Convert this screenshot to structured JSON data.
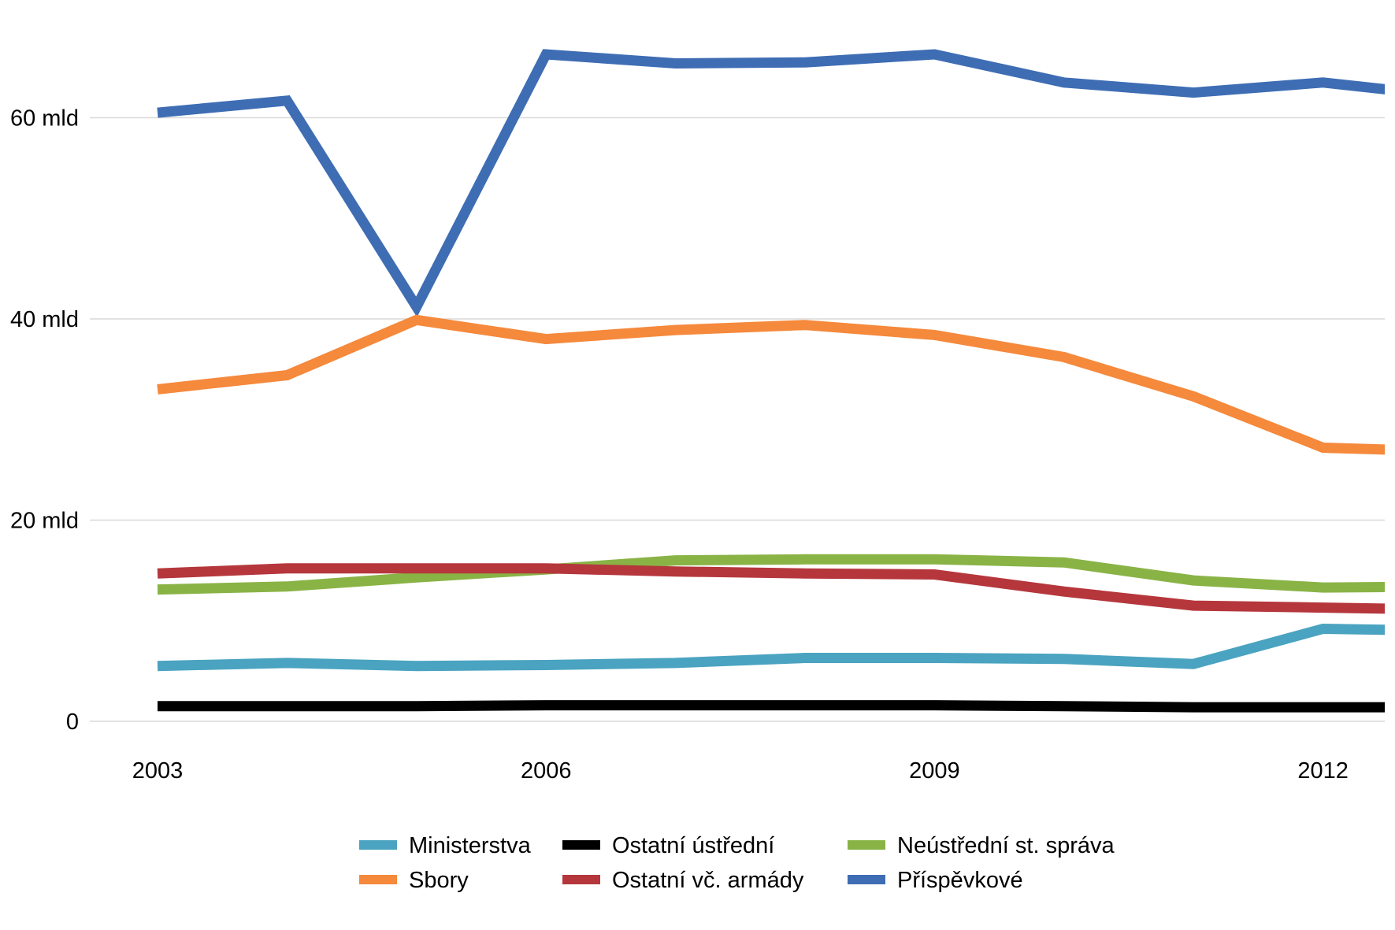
{
  "chart_data": {
    "type": "line",
    "x": [
      2003,
      2004,
      2005,
      2006,
      2007,
      2008,
      2009,
      2010,
      2011,
      2012,
      2013
    ],
    "x_tick_labels": [
      "2003",
      "2006",
      "2009",
      "2012"
    ],
    "x_tick_values": [
      2003,
      2006,
      2009,
      2012
    ],
    "y_tick_labels": [
      "0",
      "20 mld",
      "40 mld",
      "60 mld"
    ],
    "y_tick_values": [
      0,
      20,
      40,
      60
    ],
    "ylim": [
      0,
      70
    ],
    "grid": true,
    "legend_position": "bottom",
    "series": [
      {
        "name": "Ministerstva",
        "color": "#4aa3c0",
        "values": [
          5.5,
          5.8,
          5.5,
          5.6,
          5.8,
          6.3,
          6.3,
          6.2,
          5.7,
          9.2,
          9.0
        ]
      },
      {
        "name": "Ostatní ústřední",
        "color": "#000000",
        "values": [
          1.5,
          1.5,
          1.5,
          1.6,
          1.6,
          1.6,
          1.6,
          1.5,
          1.4,
          1.4,
          1.4
        ]
      },
      {
        "name": "Neústřední st. správa",
        "color": "#8ab346",
        "values": [
          13.1,
          13.4,
          14.3,
          15.1,
          16.0,
          16.1,
          16.1,
          15.8,
          14.0,
          13.3,
          13.4
        ]
      },
      {
        "name": "Sbory",
        "color": "#f5893c",
        "values": [
          33.0,
          34.4,
          39.9,
          38.0,
          38.9,
          39.4,
          38.4,
          36.2,
          32.3,
          27.2,
          26.8
        ]
      },
      {
        "name": "Ostatní vč. armády",
        "color": "#b5373c",
        "values": [
          14.7,
          15.2,
          15.2,
          15.2,
          14.9,
          14.7,
          14.6,
          12.9,
          11.5,
          11.3,
          11.1
        ]
      },
      {
        "name": "Příspěvkové",
        "color": "#3e6db4",
        "values": [
          60.5,
          61.7,
          41.2,
          66.3,
          65.4,
          65.5,
          66.3,
          63.5,
          62.5,
          63.5,
          62.1
        ]
      }
    ]
  }
}
